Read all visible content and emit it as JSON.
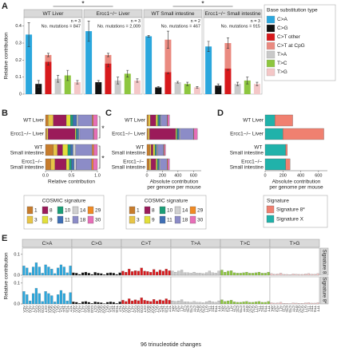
{
  "chart_data": [
    {
      "panel": "A",
      "type": "bar",
      "ylabel": "Relative contribution",
      "ylim": [
        0,
        0.45
      ],
      "yticks": [
        0,
        0.1,
        0.2,
        0.3,
        0.4
      ],
      "legend_title": "Base substitution type",
      "facets": [
        {
          "title": "WT Liver",
          "n": "n = 3",
          "note": "No. mutations = 847"
        },
        {
          "title": "Ercc1−/− Liver",
          "n": "n = 3",
          "note": "No. mutations = 2,009"
        },
        {
          "title": "WT Small intestine",
          "n": "n = 2",
          "note": "No. mutations = 467"
        },
        {
          "title": "Ercc1−/− Small intestine",
          "n": "n = 3",
          "note": "No. mutations = 915"
        }
      ],
      "series": [
        {
          "name": "C>A",
          "color": "#2ba7dd",
          "values": [
            0.35,
            0.37,
            0.34,
            0.28
          ],
          "errors": [
            0.07,
            0.06,
            0.005,
            0.03
          ]
        },
        {
          "name": "C>G",
          "color": "#111111",
          "values": [
            0.06,
            0.07,
            0.04,
            0.05
          ],
          "errors": [
            0.02,
            0.01,
            0.005,
            0.01
          ]
        },
        {
          "name": "C>T other",
          "color": "#d7191c",
          "values": [
            0.19,
            0.18,
            0.13,
            0.15
          ],
          "errors": [
            0.02,
            0.02,
            0.01,
            0.01
          ]
        },
        {
          "name": "C>T at CpG",
          "color": "#ea8a80",
          "stacked": true,
          "values": [
            0.04,
            0.05,
            0.19,
            0.15
          ],
          "errors": [
            0.01,
            0.01,
            0.05,
            0.03
          ]
        },
        {
          "name": "T>A",
          "color": "#c9c9c9",
          "values": [
            0.09,
            0.08,
            0.07,
            0.06
          ],
          "errors": [
            0.02,
            0.02,
            0.005,
            0.01
          ]
        },
        {
          "name": "T>C",
          "color": "#8dc63f",
          "values": [
            0.11,
            0.12,
            0.06,
            0.08
          ],
          "errors": [
            0.03,
            0.02,
            0.01,
            0.02
          ]
        },
        {
          "name": "T>G",
          "color": "#f4c7c7",
          "values": [
            0.07,
            0.08,
            0.04,
            0.06
          ],
          "errors": [
            0.01,
            0.01,
            0.005,
            0.01
          ]
        }
      ],
      "annotations": [
        "*",
        "*"
      ]
    },
    {
      "panel": "B",
      "type": "bar",
      "orientation": "horizontal",
      "stacked": true,
      "categories": [
        "WT Liver",
        "Ercc1−/− Liver",
        "WT Small intestine",
        "Ercc1−/− Small intestine"
      ],
      "xlabel": [
        "Relative contribution"
      ],
      "xlim": [
        0,
        1
      ],
      "xticks": [
        {
          "value": 0,
          "label": "0.0"
        },
        0.5,
        {
          "value": 1,
          "label": "1.0"
        }
      ],
      "legend_title": "COSMIC signature",
      "series": [
        {
          "name": "1",
          "color": "#c77c2c",
          "values": [
            0.05,
            0.02,
            0.15,
            0.1
          ]
        },
        {
          "name": "3",
          "color": "#e8c547",
          "values": [
            0.1,
            0.03,
            0.08,
            0.08
          ]
        },
        {
          "name": "8",
          "color": "#9b1b5a",
          "values": [
            0.25,
            0.52,
            0.1,
            0.22
          ]
        },
        {
          "name": "9",
          "color": "#e2df3a",
          "values": [
            0.08,
            0.02,
            0.1,
            0.06
          ]
        },
        {
          "name": "10",
          "color": "#1b9e77",
          "values": [
            0.05,
            0.02,
            0.05,
            0.04
          ]
        },
        {
          "name": "11",
          "color": "#3f6fb5",
          "values": [
            0.07,
            0.03,
            0.05,
            0.05
          ]
        },
        {
          "name": "14",
          "color": "#d0d0d0",
          "values": [
            0.03,
            0.02,
            0.05,
            0.04
          ]
        },
        {
          "name": "18",
          "color": "#8c8cc7",
          "values": [
            0.27,
            0.26,
            0.32,
            0.3
          ]
        },
        {
          "name": "29",
          "color": "#f08a24",
          "values": [
            0.02,
            0.01,
            0.03,
            0.03
          ]
        },
        {
          "name": "30",
          "color": "#e76fb8",
          "values": [
            0.08,
            0.07,
            0.07,
            0.08
          ]
        }
      ],
      "annotations": [
        "*",
        "*"
      ]
    },
    {
      "panel": "C",
      "type": "bar",
      "orientation": "horizontal",
      "stacked": true,
      "categories": [
        "WT Liver",
        "Ercc1−/− Liver",
        "WT Small intestine",
        "Ercc1−/− Small intestine"
      ],
      "xlabel": [
        "Absolute contribution",
        "per genome per mouse"
      ],
      "xlim": [
        0,
        700
      ],
      "xticks": [
        0,
        200,
        400,
        600
      ],
      "legend_title": "COSMIC signature",
      "series": [
        {
          "name": "1",
          "color": "#c77c2c",
          "values": [
            15,
            13,
            36,
            29
          ]
        },
        {
          "name": "3",
          "color": "#e8c547",
          "values": [
            29,
            20,
            19,
            23
          ]
        },
        {
          "name": "8",
          "color": "#9b1b5a",
          "values": [
            72,
            338,
            24,
            64
          ]
        },
        {
          "name": "9",
          "color": "#e2df3a",
          "values": [
            23,
            13,
            24,
            17
          ]
        },
        {
          "name": "10",
          "color": "#1b9e77",
          "values": [
            15,
            13,
            12,
            12
          ]
        },
        {
          "name": "11",
          "color": "#3f6fb5",
          "values": [
            20,
            20,
            12,
            15
          ]
        },
        {
          "name": "14",
          "color": "#d0d0d0",
          "values": [
            9,
            13,
            12,
            12
          ]
        },
        {
          "name": "18",
          "color": "#8c8cc7",
          "values": [
            78,
            169,
            77,
            87
          ]
        },
        {
          "name": "29",
          "color": "#f08a24",
          "values": [
            6,
            6,
            7,
            9
          ]
        },
        {
          "name": "30",
          "color": "#e76fb8",
          "values": [
            23,
            45,
            17,
            22
          ]
        }
      ]
    },
    {
      "panel": "D",
      "type": "bar",
      "orientation": "horizontal",
      "stacked": true,
      "categories": [
        "WT Liver",
        "Ercc1−/− Liver",
        "WT Small intestine",
        "Ercc1−/− Small intestine"
      ],
      "xlabel": [
        "Absolute contribution",
        "per genome per mouse"
      ],
      "xlim": [
        0,
        700
      ],
      "xticks": [
        0,
        200,
        400,
        600
      ],
      "legend_title": "Signature",
      "series": [
        {
          "name": "Signature 8*",
          "color": "#f08070",
          "values": [
            200,
            460,
            20,
            50
          ]
        },
        {
          "name": "Signature X",
          "color": "#20b2aa",
          "values": [
            110,
            200,
            230,
            230
          ]
        }
      ]
    },
    {
      "panel": "E",
      "type": "bar",
      "ylabel": "Relative contribution",
      "xlabel": "96 trinucleotide changes",
      "ylim": [
        0,
        0.13
      ],
      "yticks": [
        {
          "value": 0,
          "label": "0.0"
        },
        0.1
      ],
      "groups": [
        "C>A",
        "C>G",
        "C>T",
        "T>A",
        "T>C",
        "T>G"
      ],
      "group_colors": [
        "#2ba7dd",
        "#111111",
        "#d7191c",
        "#c9c9c9",
        "#8dc63f",
        "#f4c7c7"
      ],
      "categories": [
        "ACA",
        "ACC",
        "ACG",
        "ACT",
        "CCA",
        "CCC",
        "CCG",
        "CCT",
        "GCA",
        "GCC",
        "GCG",
        "GCT",
        "TCA",
        "TCC",
        "TCG",
        "TCT",
        "ACA",
        "ACC",
        "ACG",
        "ACT",
        "CCA",
        "CCC",
        "CCG",
        "CCT",
        "GCA",
        "GCC",
        "GCG",
        "GCT",
        "TCA",
        "TCC",
        "TCG",
        "TCT",
        "ACA",
        "ACC",
        "ACG",
        "ACT",
        "CCA",
        "CCC",
        "CCG",
        "CCT",
        "GCA",
        "GCC",
        "GCG",
        "GCT",
        "TCA",
        "TCC",
        "TCG",
        "TCT",
        "ATA",
        "ATC",
        "ATG",
        "ATT",
        "CTA",
        "CTC",
        "CTG",
        "CTT",
        "GTA",
        "GTC",
        "GTG",
        "GTT",
        "TTA",
        "TTC",
        "TTG",
        "TTT",
        "ATA",
        "ATC",
        "ATG",
        "ATT",
        "CTA",
        "CTC",
        "CTG",
        "CTT",
        "GTA",
        "GTC",
        "GTG",
        "GTT",
        "TTA",
        "TTC",
        "TTG",
        "TTT",
        "ATA",
        "ATC",
        "ATG",
        "ATT",
        "CTA",
        "CTC",
        "CTG",
        "CTT",
        "GTA",
        "GTC",
        "GTG",
        "GTT",
        "TTA",
        "TTC",
        "TTG",
        "TTT"
      ],
      "series": [
        {
          "name": "Signature 8",
          "values": [
            0.045,
            0.035,
            0.012,
            0.04,
            0.06,
            0.04,
            0.01,
            0.05,
            0.04,
            0.03,
            0.008,
            0.035,
            0.05,
            0.04,
            0.012,
            0.045,
            0.012,
            0.01,
            0.004,
            0.012,
            0.015,
            0.01,
            0.004,
            0.014,
            0.01,
            0.008,
            0.003,
            0.01,
            0.012,
            0.01,
            0.004,
            0.012,
            0.02,
            0.015,
            0.03,
            0.018,
            0.022,
            0.02,
            0.035,
            0.02,
            0.018,
            0.015,
            0.028,
            0.016,
            0.025,
            0.02,
            0.03,
            0.022,
            0.02,
            0.015,
            0.02,
            0.025,
            0.012,
            0.012,
            0.01,
            0.015,
            0.01,
            0.01,
            0.008,
            0.012,
            0.02,
            0.012,
            0.01,
            0.02,
            0.025,
            0.015,
            0.02,
            0.022,
            0.012,
            0.01,
            0.01,
            0.012,
            0.015,
            0.01,
            0.01,
            0.012,
            0.015,
            0.01,
            0.01,
            0.015,
            0.008,
            0.005,
            0.006,
            0.01,
            0.004,
            0.004,
            0.003,
            0.006,
            0.005,
            0.004,
            0.004,
            0.006,
            0.008,
            0.005,
            0.005,
            0.008
          ]
        },
        {
          "name": "Signature 8*",
          "values": [
            0.06,
            0.045,
            0.015,
            0.05,
            0.075,
            0.05,
            0.012,
            0.06,
            0.05,
            0.04,
            0.01,
            0.045,
            0.065,
            0.05,
            0.015,
            0.055,
            0.01,
            0.008,
            0.003,
            0.01,
            0.012,
            0.008,
            0.003,
            0.01,
            0.008,
            0.006,
            0.002,
            0.008,
            0.01,
            0.008,
            0.003,
            0.01,
            0.018,
            0.012,
            0.025,
            0.015,
            0.02,
            0.016,
            0.03,
            0.018,
            0.015,
            0.012,
            0.022,
            0.014,
            0.02,
            0.016,
            0.025,
            0.018,
            0.015,
            0.012,
            0.015,
            0.02,
            0.01,
            0.01,
            0.008,
            0.012,
            0.008,
            0.008,
            0.006,
            0.01,
            0.015,
            0.01,
            0.008,
            0.015,
            0.02,
            0.012,
            0.015,
            0.018,
            0.01,
            0.008,
            0.008,
            0.01,
            0.012,
            0.008,
            0.008,
            0.01,
            0.012,
            0.008,
            0.008,
            0.012,
            0.006,
            0.004,
            0.005,
            0.008,
            0.003,
            0.003,
            0.002,
            0.005,
            0.004,
            0.003,
            0.003,
            0.005,
            0.006,
            0.004,
            0.004,
            0.006
          ]
        }
      ]
    }
  ]
}
